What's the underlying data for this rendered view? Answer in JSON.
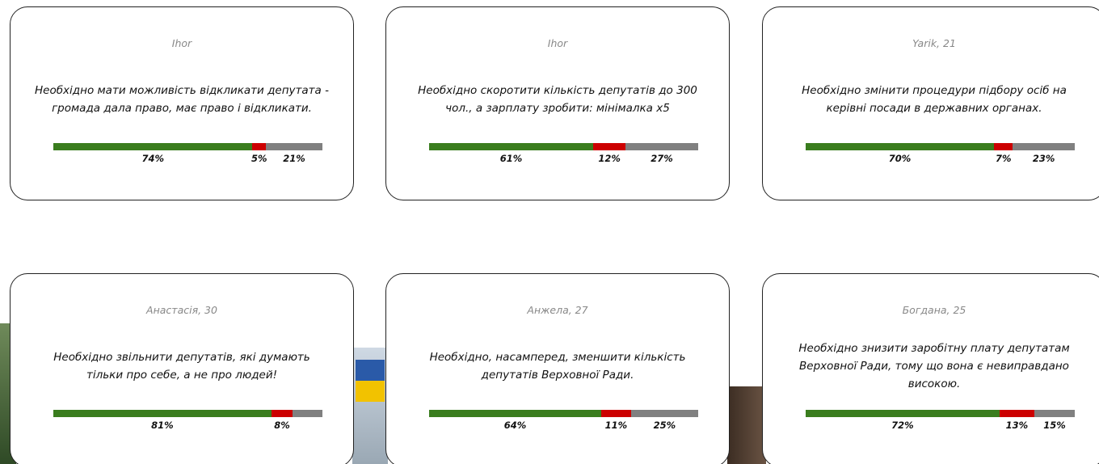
{
  "colors": [
    "#3a7d1e",
    "#cc0000",
    "#808080"
  ],
  "cards": [
    {
      "author": "Ihor",
      "text": "Необхідно мати можливість відкликати депутата - громада дала право, має право і відкликати.",
      "values": [
        74,
        5,
        21
      ],
      "value_labels": [
        "74%",
        "5%",
        "21%"
      ]
    },
    {
      "author": "Ihor",
      "text": "Необхідно скоротити кількість депутатів до 300 чол., а зарплату зробити: мінімалка x5",
      "values": [
        61,
        12,
        27
      ],
      "value_labels": [
        "61%",
        "12%",
        "27%"
      ]
    },
    {
      "author": "Yarik, 21",
      "text": "Необхідно змінити процедури підбору осіб на керівні посади в державних органах.",
      "values": [
        70,
        7,
        23
      ],
      "value_labels": [
        "70%",
        "7%",
        "23%"
      ]
    },
    {
      "author": "Анастасія, 30",
      "text": "Необхідно звільнити депутатів, які думають тільки про себе, а не про людей!",
      "values": [
        81,
        8,
        11
      ],
      "value_labels": [
        "81%",
        "8%",
        null
      ]
    },
    {
      "author": "Анжела, 27",
      "text": "Необхідно, насамперед, зменшити кількість депутатів Верховної Ради.",
      "values": [
        64,
        11,
        25
      ],
      "value_labels": [
        "64%",
        "11%",
        "25%"
      ]
    },
    {
      "author": "Богдана, 25",
      "text": "Необхідно знизити заробітну плату депутатам Верховної Ради, тому що вона є невиправдано високою.",
      "values": [
        72,
        13,
        15
      ],
      "value_labels": [
        "72%",
        "13%",
        "15%"
      ]
    }
  ]
}
